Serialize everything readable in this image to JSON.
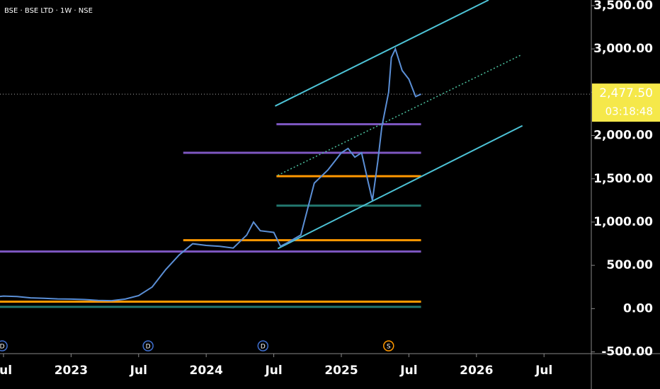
{
  "chart_data": {
    "type": "line",
    "title": "BSE · BSE LTD · 1W · NSE",
    "color": "#5b8fd6",
    "x": [
      2022.47,
      2022.5,
      2022.6,
      2022.7,
      2022.8,
      2022.9,
      2023.0,
      2023.1,
      2023.2,
      2023.3,
      2023.4,
      2023.5,
      2023.6,
      2023.7,
      2023.8,
      2023.9,
      2024.0,
      2024.1,
      2024.2,
      2024.3,
      2024.35,
      2024.4,
      2024.5,
      2024.55,
      2024.6,
      2024.7,
      2024.75,
      2024.8,
      2024.9,
      2024.95,
      2025.0,
      2025.05,
      2025.1,
      2025.15,
      2025.2,
      2025.23,
      2025.27,
      2025.3,
      2025.35,
      2025.37,
      2025.4,
      2025.45,
      2025.5,
      2025.55,
      2025.59
    ],
    "values": [
      140,
      145,
      140,
      125,
      120,
      112,
      110,
      105,
      95,
      92,
      110,
      150,
      250,
      450,
      620,
      750,
      730,
      720,
      700,
      850,
      1000,
      900,
      880,
      720,
      760,
      850,
      1150,
      1450,
      1600,
      1700,
      1800,
      1850,
      1750,
      1800,
      1450,
      1250,
      1700,
      2100,
      2500,
      2900,
      3000,
      2750,
      2650,
      2450,
      2477.5
    ],
    "levels": [
      {
        "value": 2130,
        "start": 2024.52,
        "end": 2025.59,
        "color": "#7e57c2"
      },
      {
        "value": 1800,
        "start": 2023.83,
        "end": 2025.59,
        "color": "#7e57c2"
      },
      {
        "value": 1530,
        "start": 2024.52,
        "end": 2025.59,
        "color": "#ff9800"
      },
      {
        "value": 1190,
        "start": 2024.52,
        "end": 2025.59,
        "color": "#22786f"
      },
      {
        "value": 790,
        "start": 2023.83,
        "end": 2025.59,
        "color": "#ff9800"
      },
      {
        "value": 660,
        "start": 2022.47,
        "end": 2025.59,
        "color": "#7e57c2"
      },
      {
        "value": 80,
        "start": 2022.47,
        "end": 2025.59,
        "color": "#ff9800"
      },
      {
        "value": 20,
        "start": 2022.47,
        "end": 2025.59,
        "color": "#22786f"
      }
    ],
    "channels": [
      {
        "x": [
          2024.51,
          2026.09
        ],
        "values": [
          2340,
          3565
        ],
        "color": "#4dc3d6",
        "style": "solid"
      },
      {
        "x": [
          2024.53,
          2026.33
        ],
        "values": [
          1540,
          2930
        ],
        "color": "#4dc3a0",
        "style": "dotted"
      },
      {
        "x": [
          2024.53,
          2026.34
        ],
        "values": [
          693,
          2113
        ],
        "color": "#4dc3d6",
        "style": "solid"
      }
    ],
    "last_price": {
      "value": 2477.5,
      "label": "2,477.50"
    },
    "countdown": "03:18:48",
    "events": [
      {
        "x": 2022.49,
        "label": "D"
      },
      {
        "x": 2023.57,
        "label": "D"
      },
      {
        "x": 2024.42,
        "label": "D"
      },
      {
        "x": 2025.35,
        "label": "S"
      }
    ],
    "xlim": [
      2022.474,
      2026.85
    ],
    "xticks": [
      {
        "value": 2022.5,
        "label": "Jul"
      },
      2023,
      {
        "value": 2023.5,
        "label": "Jul"
      },
      2024,
      {
        "value": 2024.5,
        "label": "Jul"
      },
      2025,
      {
        "value": 2025.5,
        "label": "Jul"
      },
      2026,
      {
        "value": 2026.5,
        "label": "Jul"
      }
    ],
    "ylim": [
      -520,
      3565
    ],
    "yticks": [
      {
        "value": -500,
        "label": "-500.00"
      },
      {
        "value": 0,
        "label": "0.00"
      },
      {
        "value": 500,
        "label": "500.00"
      },
      {
        "value": 1000,
        "label": "1,000.00"
      },
      {
        "value": 1500,
        "label": "1,500.00"
      },
      {
        "value": 2000,
        "label": "2,000.00"
      },
      {
        "value": 2500,
        "label": "2,500.00"
      },
      {
        "value": 3000,
        "label": "3,000.00"
      },
      {
        "value": 3500,
        "label": "3,500.00"
      }
    ]
  }
}
